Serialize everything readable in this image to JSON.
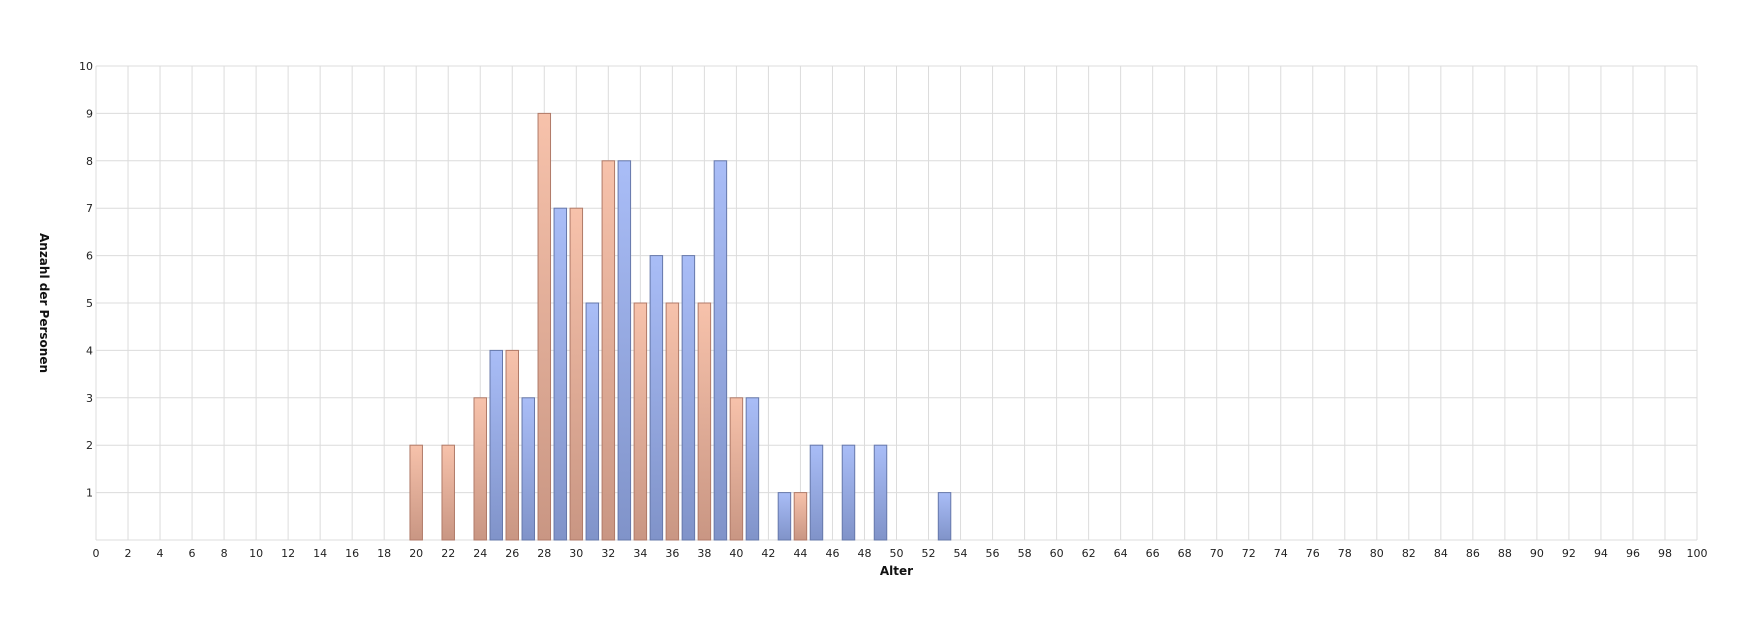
{
  "chart_data": {
    "type": "bar",
    "xlabel": "Alter",
    "ylabel": "Anzahl der Personen",
    "xlim": [
      0,
      100
    ],
    "ylim": [
      0,
      10
    ],
    "x_ticks": [
      0,
      2,
      4,
      6,
      8,
      10,
      12,
      14,
      16,
      18,
      20,
      22,
      24,
      26,
      28,
      30,
      32,
      34,
      36,
      38,
      40,
      42,
      44,
      46,
      48,
      50,
      52,
      54,
      56,
      58,
      60,
      62,
      64,
      66,
      68,
      70,
      72,
      74,
      76,
      78,
      80,
      82,
      84,
      86,
      88,
      90,
      92,
      94,
      96,
      98,
      100
    ],
    "y_ticks": [
      1,
      2,
      3,
      4,
      5,
      6,
      7,
      8,
      9,
      10
    ],
    "grid": true,
    "series": [
      {
        "color_top": "#f7c2ab",
        "color_bottom": "#c99683",
        "stroke": "#b07a68",
        "points": [
          {
            "x": 20,
            "y": 2
          },
          {
            "x": 22,
            "y": 2
          },
          {
            "x": 24,
            "y": 3
          },
          {
            "x": 26,
            "y": 4
          },
          {
            "x": 28,
            "y": 9
          },
          {
            "x": 30,
            "y": 7
          },
          {
            "x": 32,
            "y": 8
          },
          {
            "x": 34,
            "y": 5
          },
          {
            "x": 36,
            "y": 5
          },
          {
            "x": 38,
            "y": 5
          },
          {
            "x": 40,
            "y": 3
          },
          {
            "x": 44,
            "y": 1
          }
        ]
      },
      {
        "color_top": "#a9bdf7",
        "color_bottom": "#8093c9",
        "stroke": "#6678aa",
        "points": [
          {
            "x": 25,
            "y": 4
          },
          {
            "x": 27,
            "y": 3
          },
          {
            "x": 29,
            "y": 7
          },
          {
            "x": 31,
            "y": 5
          },
          {
            "x": 33,
            "y": 8
          },
          {
            "x": 35,
            "y": 6
          },
          {
            "x": 37,
            "y": 6
          },
          {
            "x": 39,
            "y": 8
          },
          {
            "x": 41,
            "y": 3
          },
          {
            "x": 43,
            "y": 1
          },
          {
            "x": 45,
            "y": 2
          },
          {
            "x": 47,
            "y": 2
          },
          {
            "x": 49,
            "y": 2
          },
          {
            "x": 53,
            "y": 1
          }
        ]
      }
    ]
  }
}
